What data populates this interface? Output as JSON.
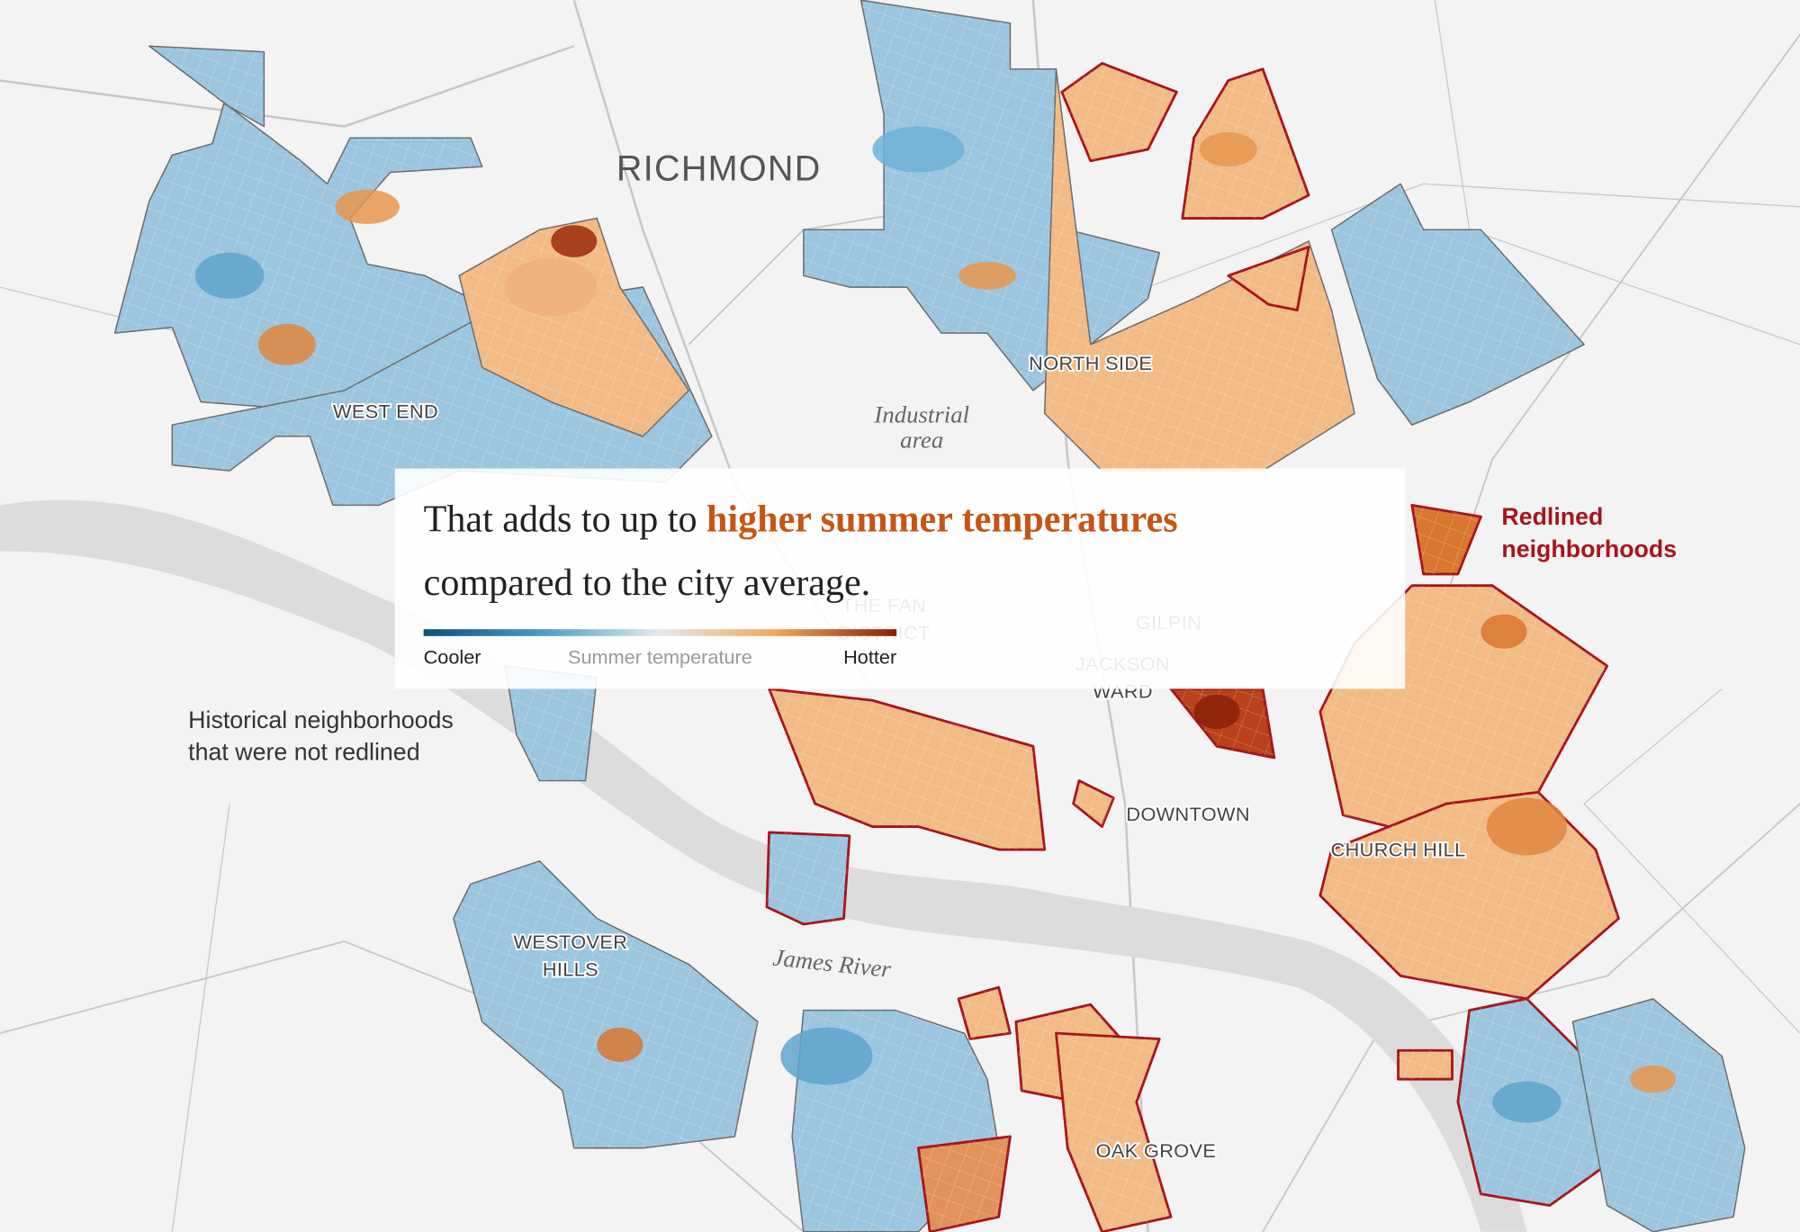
{
  "city": "RICHMOND",
  "neighborhood_labels": [
    {
      "lines": [
        "WEST END"
      ]
    },
    {
      "lines": [
        "NORTH SIDE"
      ]
    },
    {
      "lines": [
        "THE FAN",
        "DISTRICT"
      ]
    },
    {
      "lines": [
        "GILPIN"
      ]
    },
    {
      "lines": [
        "JACKSON",
        "WARD"
      ]
    },
    {
      "lines": [
        "DOWNTOWN"
      ]
    },
    {
      "lines": [
        "CHURCH HILL"
      ]
    },
    {
      "lines": [
        "WESTOVER",
        "HILLS"
      ]
    },
    {
      "lines": [
        "OAK GROVE"
      ]
    }
  ],
  "area_labels": {
    "industrial": [
      "Industrial",
      "area"
    ],
    "river": "James River"
  },
  "annotations": {
    "not_redlined": [
      "Historical neighborhoods",
      "that were not redlined"
    ],
    "redlined": [
      "Redlined",
      "neighborhoods"
    ]
  },
  "caption": {
    "prefix": "That adds to up to ",
    "highlight": "higher summer temperatures",
    "line2": "compared to the city average."
  },
  "legend": {
    "low": "Cooler",
    "title": "Summer temperature",
    "high": "Hotter"
  }
}
